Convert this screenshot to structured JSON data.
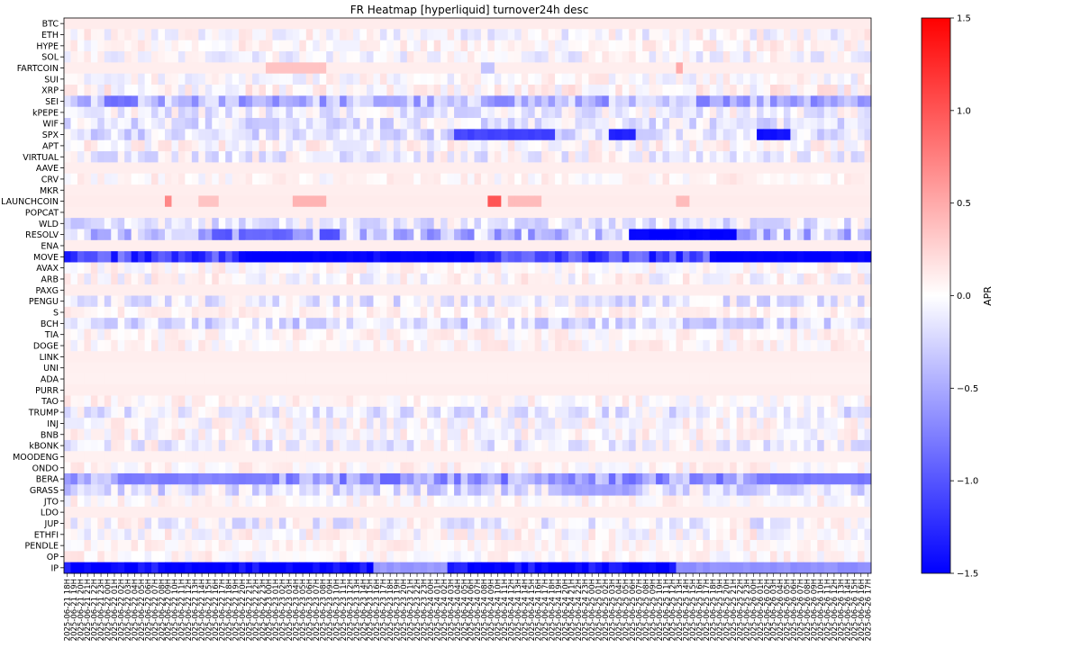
{
  "chart_data": {
    "type": "heatmap",
    "title": "FR Heatmap [hyperliquid] turnover24h desc",
    "ylabel": "",
    "xlabel": "",
    "colorbar": {
      "label": "APR",
      "range": [
        -1.5,
        1.5
      ],
      "ticks": [
        1.5,
        1.0,
        0.5,
        0.0,
        -0.5,
        -1.0,
        -1.5
      ],
      "tick_labels": [
        "1.5",
        "1.0",
        "0.5",
        "0.0",
        "−0.5",
        "−1.0",
        "−1.5"
      ],
      "colormap": "bwr",
      "low_color": "#0000ff",
      "mid_color": "#ffffff",
      "high_color": "#ff0000"
    },
    "rows": [
      "BTC",
      "ETH",
      "HYPE",
      "SOL",
      "FARTCOIN",
      "SUI",
      "XRP",
      "SEI",
      "kPEPE",
      "WIF",
      "SPX",
      "APT",
      "VIRTUAL",
      "AAVE",
      "CRV",
      "MKR",
      "LAUNCHCOIN",
      "POPCAT",
      "WLD",
      "RESOLV",
      "ENA",
      "MOVE",
      "AVAX",
      "ARB",
      "PAXG",
      "PENGU",
      "S",
      "BCH",
      "TIA",
      "DOGE",
      "LINK",
      "UNI",
      "ADA",
      "PURR",
      "TAO",
      "TRUMP",
      "INJ",
      "BNB",
      "kBONK",
      "MOODENG",
      "ONDO",
      "BERA",
      "GRASS",
      "JTO",
      "LDO",
      "JUP",
      "ETHFI",
      "PENDLE",
      "OP",
      "IP"
    ],
    "x_start": "2025-06-21 18H",
    "x_end": "2025-06-26 17H",
    "x_step_hours": 1,
    "x_count": 120,
    "baseline": 0.11,
    "row_values": {
      "BTC": {
        "base": 0.11
      },
      "ETH": {
        "base": 0.0,
        "noise": 0.22
      },
      "HYPE": {
        "base": 0.06,
        "noise": 0.16
      },
      "SOL": {
        "base": -0.02,
        "noise": 0.2
      },
      "FARTCOIN": {
        "base": 0.1,
        "spikes": [
          [
            30,
            38,
            0.35
          ],
          [
            62,
            63,
            -0.35
          ],
          [
            91,
            91,
            0.5
          ]
        ]
      },
      "SUI": {
        "base": 0.02,
        "noise": 0.18
      },
      "XRP": {
        "base": 0.06,
        "noise": 0.2
      },
      "SEI": {
        "base": -0.4,
        "noise": 0.35,
        "segments": [
          [
            6,
            10,
            -0.85
          ]
        ]
      },
      "kPEPE": {
        "base": -0.05,
        "noise": 0.25
      },
      "WIF": {
        "base": -0.12,
        "noise": 0.25
      },
      "SPX": {
        "base": -0.15,
        "noise": 0.25,
        "segments": [
          [
            58,
            72,
            -1.1
          ],
          [
            81,
            84,
            -1.3
          ],
          [
            103,
            107,
            -1.4
          ]
        ]
      },
      "APT": {
        "base": 0.04,
        "noise": 0.2
      },
      "VIRTUAL": {
        "base": -0.05,
        "noise": 0.25
      },
      "AAVE": {
        "base": 0.1
      },
      "CRV": {
        "base": 0.05,
        "noise": 0.14
      },
      "MKR": {
        "base": 0.1
      },
      "LAUNCHCOIN": {
        "base": 0.11,
        "spikes": [
          [
            15,
            15,
            0.7
          ],
          [
            20,
            22,
            0.35
          ],
          [
            34,
            38,
            0.45
          ],
          [
            63,
            64,
            1.0
          ],
          [
            66,
            70,
            0.4
          ],
          [
            91,
            92,
            0.4
          ]
        ]
      },
      "POPCAT": {
        "base": 0.1
      },
      "WLD": {
        "base": -0.1,
        "noise": 0.25
      },
      "RESOLV": {
        "base": -0.3,
        "noise": 0.4,
        "segments": [
          [
            22,
            24,
            -1.0
          ],
          [
            26,
            33,
            -0.9
          ],
          [
            38,
            40,
            -1.0
          ],
          [
            84,
            99,
            -1.5
          ]
        ]
      },
      "ENA": {
        "base": 0.1
      },
      "MOVE": {
        "base": -1.05,
        "noise": 0.35,
        "segments": [
          [
            26,
            45,
            -1.5
          ],
          [
            47,
            60,
            -1.5
          ],
          [
            96,
            119,
            -1.5
          ]
        ]
      },
      "AVAX": {
        "base": 0.05,
        "noise": 0.15
      },
      "ARB": {
        "base": 0.02,
        "noise": 0.2
      },
      "PAXG": {
        "base": 0.1
      },
      "PENGU": {
        "base": -0.1,
        "noise": 0.25
      },
      "S": {
        "base": 0.08,
        "noise": 0.1
      },
      "BCH": {
        "base": -0.2,
        "noise": 0.25
      },
      "TIA": {
        "base": 0.05,
        "noise": 0.15
      },
      "DOGE": {
        "base": 0.05,
        "noise": 0.15
      },
      "LINK": {
        "base": 0.1
      },
      "UNI": {
        "base": 0.09
      },
      "ADA": {
        "base": 0.08
      },
      "PURR": {
        "base": 0.1
      },
      "TAO": {
        "base": 0.05,
        "noise": 0.15
      },
      "TRUMP": {
        "base": -0.1,
        "noise": 0.25
      },
      "INJ": {
        "base": 0.02,
        "noise": 0.2
      },
      "BNB": {
        "base": 0.03,
        "noise": 0.2
      },
      "kBONK": {
        "base": -0.05,
        "noise": 0.25
      },
      "MOODENG": {
        "base": 0.08
      },
      "ONDO": {
        "base": 0.05,
        "noise": 0.15
      },
      "BERA": {
        "base": -0.55,
        "noise": 0.35,
        "segments": [
          [
            8,
            30,
            -0.75
          ],
          [
            104,
            119,
            -0.8
          ]
        ]
      },
      "GRASS": {
        "base": -0.15,
        "noise": 0.3,
        "segments": [
          [
            74,
            84,
            -0.55
          ]
        ]
      },
      "JTO": {
        "base": 0.05,
        "noise": 0.15
      },
      "LDO": {
        "base": 0.1
      },
      "JUP": {
        "base": -0.05,
        "noise": 0.25
      },
      "ETHFI": {
        "base": 0.03,
        "noise": 0.2
      },
      "PENDLE": {
        "base": 0.06,
        "noise": 0.12
      },
      "OP": {
        "base": 0.05,
        "noise": 0.15
      },
      "IP": {
        "base": -1.45,
        "noise": 0.25,
        "segments": [
          [
            46,
            56,
            -0.6
          ],
          [
            91,
            119,
            -0.65
          ]
        ]
      }
    }
  }
}
